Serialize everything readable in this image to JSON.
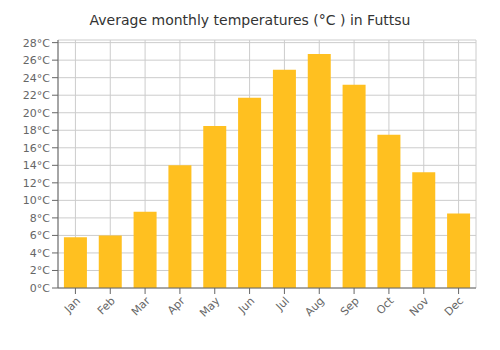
{
  "chart_data": {
    "type": "bar",
    "title": "Average monthly temperatures (°C ) in Futtsu",
    "categories": [
      "Jan",
      "Feb",
      "Mar",
      "Apr",
      "May",
      "Jun",
      "Jul",
      "Aug",
      "Sep",
      "Oct",
      "Nov",
      "Dec"
    ],
    "values": [
      5.8,
      6.0,
      8.7,
      14.0,
      18.5,
      21.7,
      24.9,
      26.7,
      23.2,
      17.5,
      13.2,
      8.5
    ],
    "color": "#FFC020",
    "ylim": [
      0,
      28.3
    ],
    "yticks": [
      {
        "value": 0,
        "label": "0°C"
      },
      {
        "value": 2,
        "label": "2°C"
      },
      {
        "value": 4,
        "label": "4°C"
      },
      {
        "value": 6,
        "label": "6°C"
      },
      {
        "value": 8,
        "label": "8°C"
      },
      {
        "value": 10,
        "label": "10°C"
      },
      {
        "value": 12,
        "label": "12°C"
      },
      {
        "value": 14,
        "label": "14°C"
      },
      {
        "value": 16,
        "label": "16°C"
      },
      {
        "value": 18,
        "label": "18°C"
      },
      {
        "value": 20,
        "label": "20°C"
      },
      {
        "value": 22,
        "label": "22°C"
      },
      {
        "value": 24,
        "label": "24°C"
      },
      {
        "value": 26,
        "label": "26°C"
      },
      {
        "value": 28,
        "label": "28°C"
      }
    ],
    "grid": true
  }
}
